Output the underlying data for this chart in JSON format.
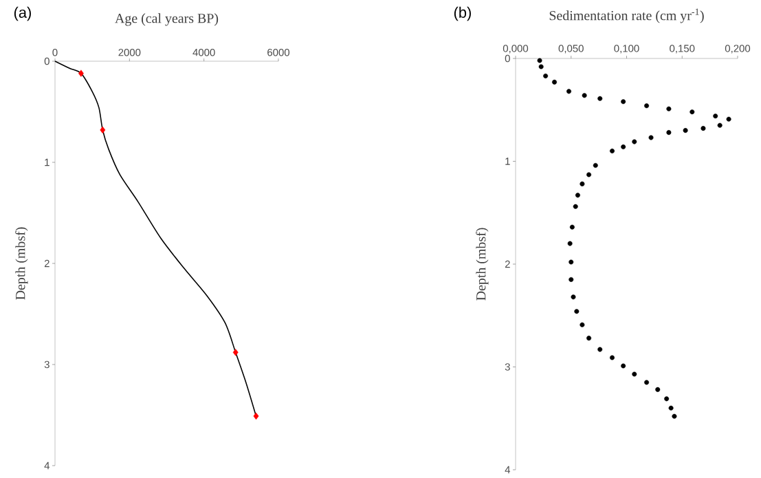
{
  "chart_data": [
    {
      "type": "line",
      "xlabel": "Age (cal years BP)",
      "ylabel": "Depth (mbsf)",
      "annotations": [
        "(a)"
      ],
      "xlim": [
        0,
        6000
      ],
      "xticks": [
        0,
        2000,
        4000,
        6000
      ],
      "ylim": [
        4,
        0
      ],
      "yticks": [
        0,
        1,
        2,
        3,
        4
      ],
      "series": [
        {
          "type": "line",
          "color": "#000000",
          "marker": "none",
          "x": [
            0,
            390,
            700,
            1000,
            1180,
            1280,
            1440,
            1740,
            2230,
            2840,
            3470,
            4080,
            4570,
            4850,
            5130,
            5400
          ],
          "values": [
            0,
            0.07,
            0.12,
            0.3,
            0.46,
            0.68,
            0.87,
            1.12,
            1.39,
            1.75,
            2.05,
            2.32,
            2.59,
            2.88,
            3.18,
            3.51
          ]
        },
        {
          "type": "scatter",
          "color": "#ff0000",
          "marker": "diamond",
          "x": [
            700,
            1280,
            4850,
            5400
          ],
          "values": [
            0.12,
            0.68,
            2.88,
            3.51
          ]
        }
      ]
    },
    {
      "type": "scatter",
      "xlabel": "Sedimentation rate (cm yr$^{-1}$)",
      "ylabel": "Depth (mbsf)",
      "annotations": [
        "(b)"
      ],
      "xlim": [
        0,
        0.2
      ],
      "xticks": [
        {
          "value": 0,
          "label": "0,000"
        },
        {
          "value": 0.05,
          "label": "0,050"
        },
        {
          "value": 0.1,
          "label": "0,100"
        },
        {
          "value": 0.15,
          "label": "0,150"
        },
        {
          "value": 0.2,
          "label": "0,200"
        }
      ],
      "ylim": [
        4,
        0
      ],
      "yticks": [
        0,
        1,
        2,
        3,
        4
      ],
      "color": "#000000",
      "marker": "circle",
      "x": [
        0.0217,
        0.023,
        0.027,
        0.035,
        0.048,
        0.062,
        0.076,
        0.097,
        0.118,
        0.138,
        0.159,
        0.18,
        0.192,
        0.184,
        0.169,
        0.153,
        0.138,
        0.122,
        0.107,
        0.097,
        0.087,
        0.072,
        0.066,
        0.06,
        0.056,
        0.054,
        0.051,
        0.049,
        0.05,
        0.05,
        0.052,
        0.055,
        0.06,
        0.066,
        0.076,
        0.087,
        0.097,
        0.107,
        0.118,
        0.128,
        0.136,
        0.14,
        0.143
      ],
      "values": [
        0.02,
        0.08,
        0.17,
        0.23,
        0.32,
        0.36,
        0.39,
        0.42,
        0.46,
        0.49,
        0.52,
        0.56,
        0.59,
        0.65,
        0.68,
        0.7,
        0.72,
        0.77,
        0.81,
        0.86,
        0.9,
        1.04,
        1.13,
        1.22,
        1.33,
        1.44,
        1.64,
        1.8,
        1.98,
        2.15,
        2.32,
        2.46,
        2.59,
        2.72,
        2.83,
        2.91,
        2.99,
        3.07,
        3.15,
        3.22,
        3.31,
        3.4,
        3.48
      ]
    }
  ]
}
